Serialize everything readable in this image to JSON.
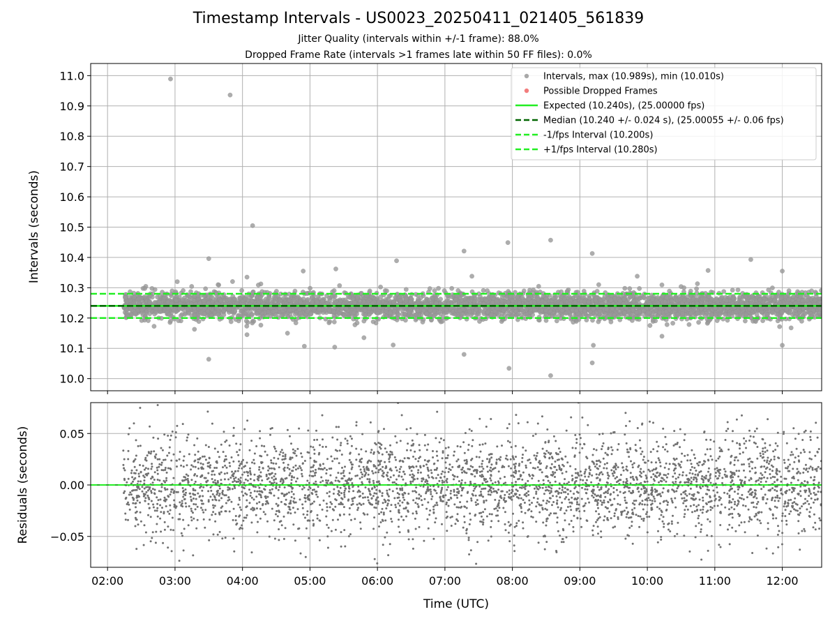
{
  "title": "Timestamp Intervals - US0023_20250411_021405_561839",
  "subtitles": [
    "Jitter Quality (intervals within +/-1 frame): 88.0%",
    "Dropped Frame Rate (intervals >1 frames late within 50 FF files): 0.0%"
  ],
  "chart_data": [
    {
      "type": "scatter",
      "panel": "top",
      "xlabel": "",
      "ylabel": "Intervals (seconds)",
      "x_range": [
        "01:45",
        "12:35"
      ],
      "ylim": [
        9.96,
        11.04
      ],
      "y_ticks": [
        10.0,
        10.1,
        10.2,
        10.3,
        10.4,
        10.5,
        10.6,
        10.7,
        10.8,
        10.9,
        11.0
      ],
      "y_tick_labels": [
        "10.0",
        "10.1",
        "10.2",
        "10.3",
        "10.4",
        "10.5",
        "10.6",
        "10.7",
        "10.8",
        "10.9",
        "11.0"
      ],
      "grid": true,
      "legend_position": "top-right",
      "colors": {
        "intervals": "#999999",
        "dropped": "#f06666",
        "expected": "#22ee22",
        "median": "#006400",
        "bounds": "#22ee22",
        "grid": "#b0b0b0"
      },
      "legend": [
        {
          "label": "Intervals, max (10.989s), min (10.010s)",
          "marker": "dot",
          "color": "#999999"
        },
        {
          "label": "Possible Dropped Frames",
          "marker": "dot",
          "color": "#f06666"
        },
        {
          "label": "Expected (10.240s), (25.00000 fps)",
          "marker": "line",
          "color": "#22ee22"
        },
        {
          "label": "Median (10.240 +/- 0.024 s), (25.00055 +/- 0.06 fps)",
          "marker": "dash",
          "color": "#006400"
        },
        {
          "label": "-1/fps Interval (10.200s)",
          "marker": "dash",
          "color": "#22ee22"
        },
        {
          "label": "+1/fps Interval (10.280s)",
          "marker": "dash",
          "color": "#22ee22"
        }
      ],
      "expected": 10.24,
      "median": 10.24,
      "lower_bound": 10.2,
      "upper_bound": 10.28,
      "data_start": "02:14",
      "interval_seconds": 10.24,
      "dropped_frames": [],
      "outliers": [
        {
          "x": "02:56",
          "y": 10.989
        },
        {
          "x": "03:49",
          "y": 10.936
        },
        {
          "x": "04:09",
          "y": 10.505
        },
        {
          "x": "08:34",
          "y": 10.457
        },
        {
          "x": "07:56",
          "y": 10.449
        },
        {
          "x": "07:17",
          "y": 10.421
        },
        {
          "x": "09:11",
          "y": 10.413
        },
        {
          "x": "03:30",
          "y": 10.396
        },
        {
          "x": "11:32",
          "y": 10.393
        },
        {
          "x": "06:17",
          "y": 10.389
        },
        {
          "x": "05:23",
          "y": 10.362
        },
        {
          "x": "10:54",
          "y": 10.357
        },
        {
          "x": "04:54",
          "y": 10.355
        },
        {
          "x": "12:00",
          "y": 10.355
        },
        {
          "x": "09:51",
          "y": 10.338
        },
        {
          "x": "04:04",
          "y": 10.335
        },
        {
          "x": "07:24",
          "y": 10.338
        },
        {
          "x": "03:02",
          "y": 10.32
        },
        {
          "x": "03:30",
          "y": 10.064
        },
        {
          "x": "08:34",
          "y": 10.01
        },
        {
          "x": "07:57",
          "y": 10.034
        },
        {
          "x": "09:11",
          "y": 10.052
        },
        {
          "x": "07:17",
          "y": 10.08
        },
        {
          "x": "04:55",
          "y": 10.107
        },
        {
          "x": "06:14",
          "y": 10.111
        },
        {
          "x": "09:12",
          "y": 10.11
        },
        {
          "x": "12:00",
          "y": 10.11
        },
        {
          "x": "05:22",
          "y": 10.104
        },
        {
          "x": "04:04",
          "y": 10.145
        },
        {
          "x": "10:13",
          "y": 10.14
        },
        {
          "x": "05:48",
          "y": 10.135
        },
        {
          "x": "04:40",
          "y": 10.15
        }
      ]
    },
    {
      "type": "scatter",
      "panel": "bottom",
      "xlabel": "Time (UTC)",
      "ylabel": "Residuals (seconds)",
      "x_range": [
        "01:45",
        "12:35"
      ],
      "x_ticks": [
        "02:00",
        "03:00",
        "04:00",
        "05:00",
        "06:00",
        "07:00",
        "08:00",
        "09:00",
        "10:00",
        "11:00",
        "12:00"
      ],
      "ylim": [
        -0.08,
        0.08
      ],
      "y_ticks": [
        -0.05,
        0.0,
        0.05
      ],
      "y_tick_labels": [
        "−0.05",
        "0.00",
        "0.05"
      ],
      "grid": true,
      "colors": {
        "residuals": "#707070",
        "zero_line": "#22aa22"
      },
      "residual_spread": 0.024,
      "zero_line": 0.0
    }
  ]
}
